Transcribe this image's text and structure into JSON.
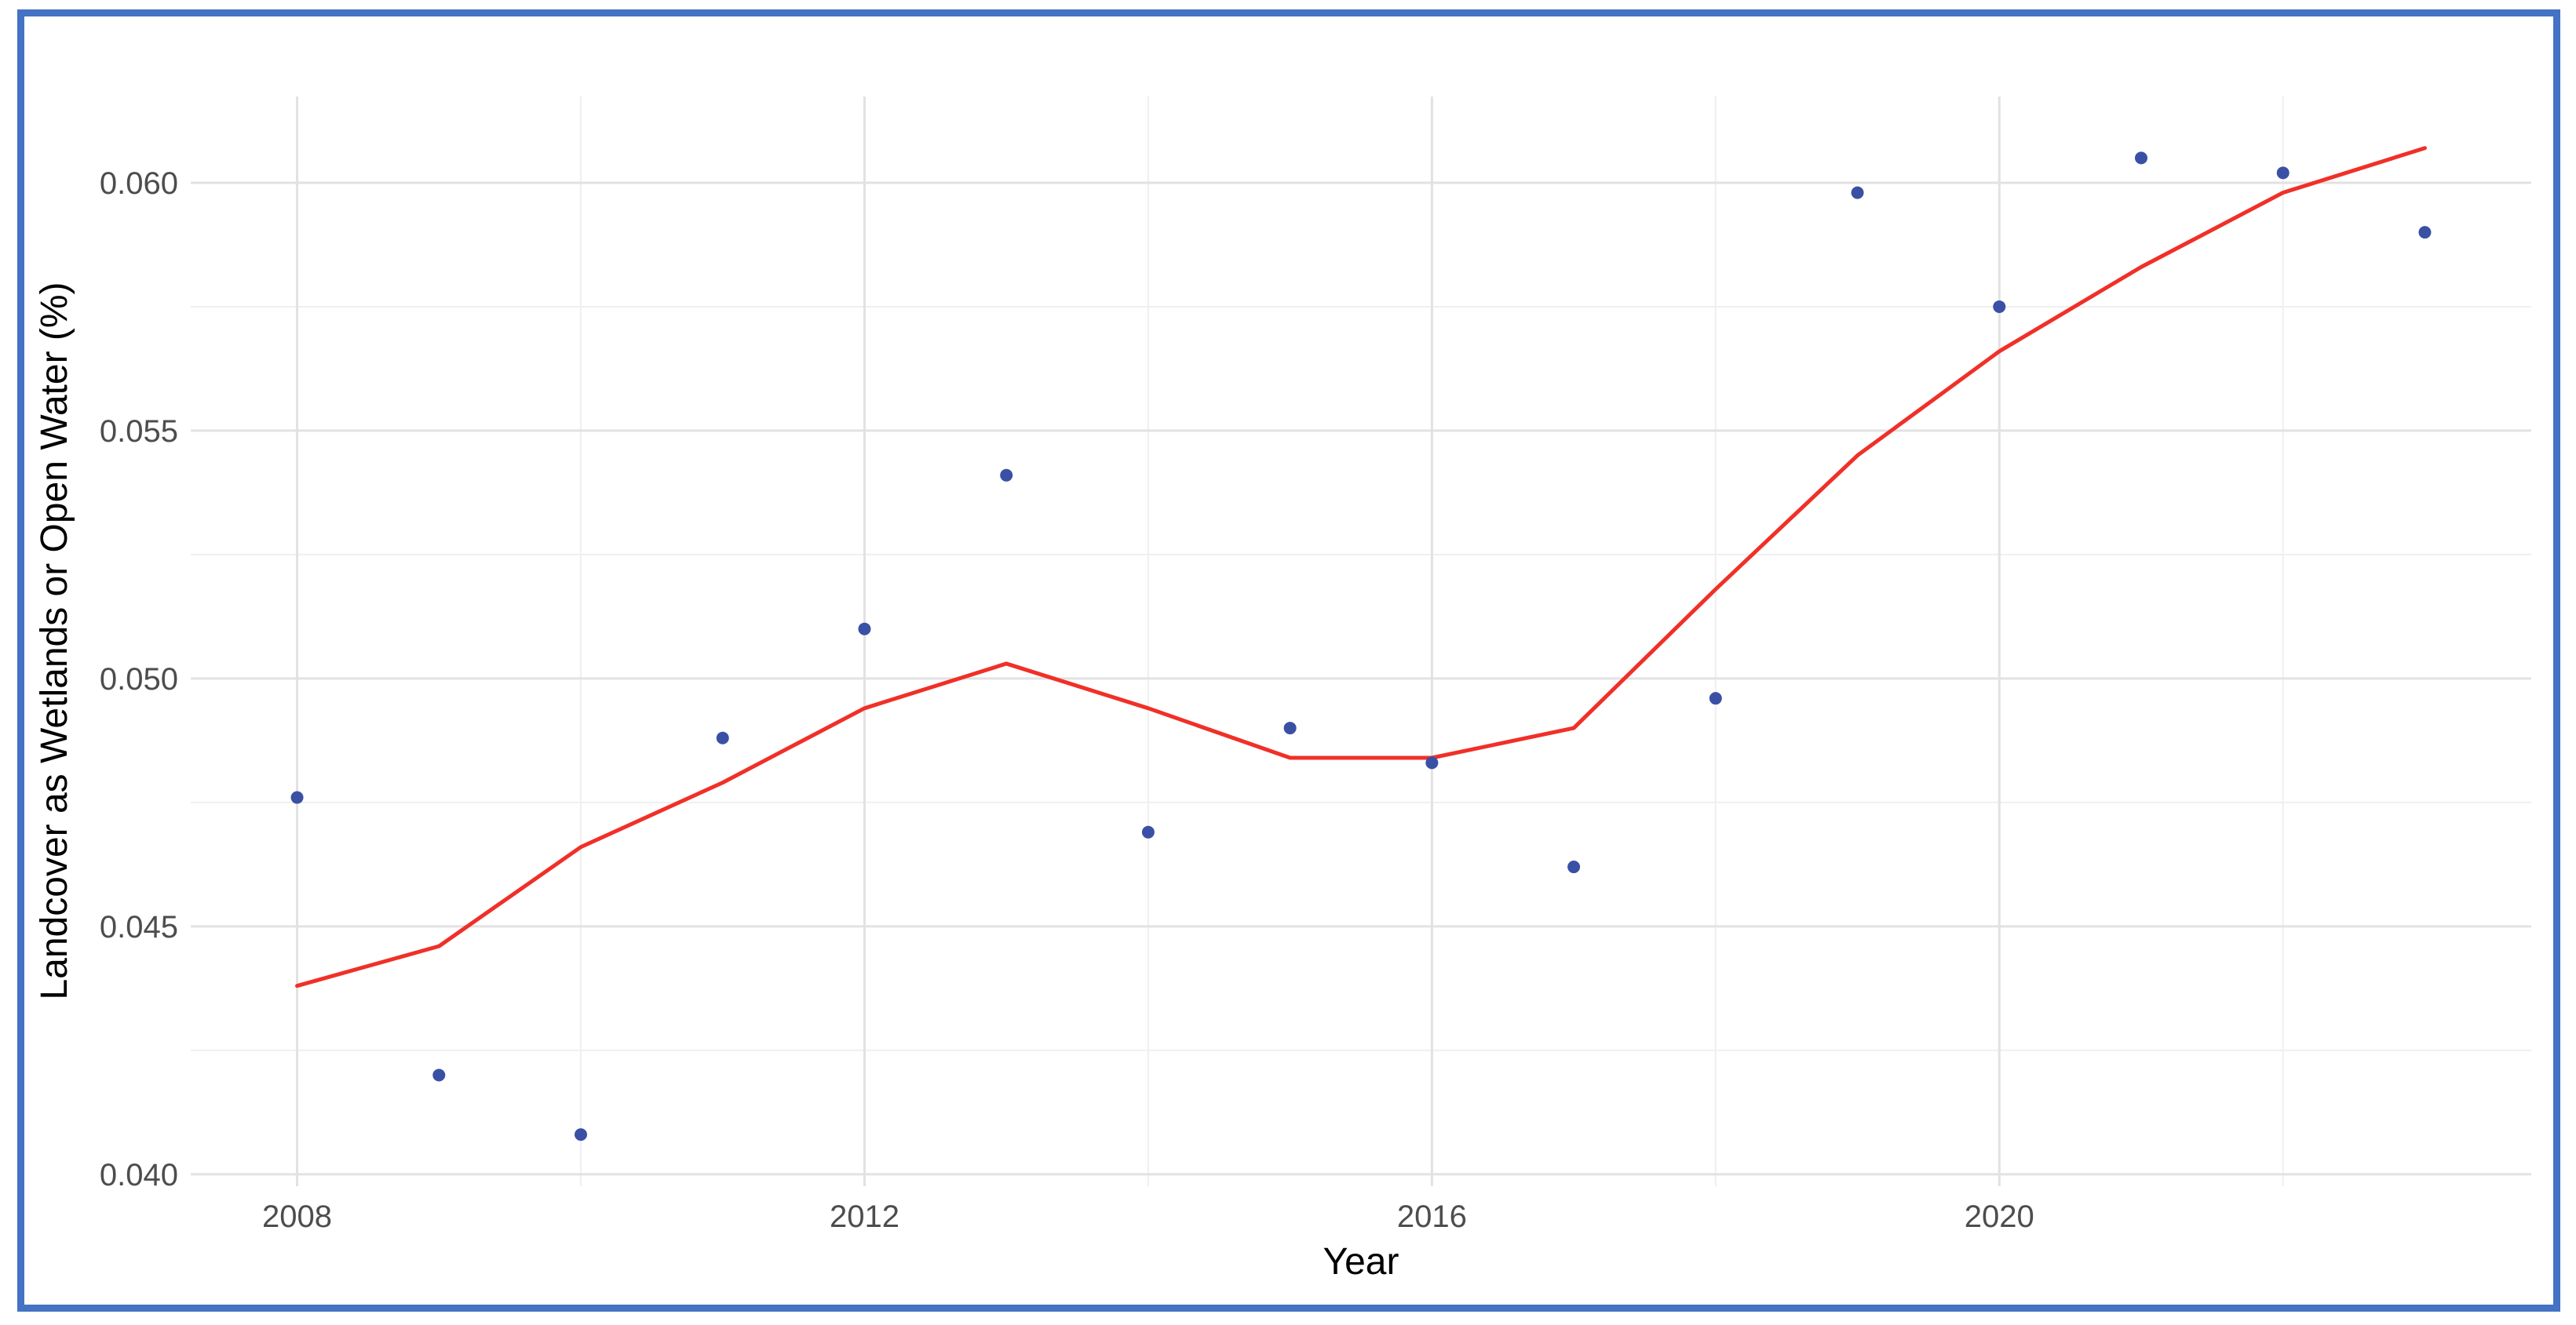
{
  "figure": {
    "border_color": "#4472C4",
    "background_color": "#ffffff",
    "panel_background": "#ffffff"
  },
  "chart_data": {
    "type": "scatter",
    "title": "",
    "xlabel": "Year",
    "ylabel": "Landcover as Wetlands or Open Water (%)",
    "xlim": [
      2007.25,
      2023.75
    ],
    "ylim": [
      0.03976,
      0.06174
    ],
    "grid": "major+minor",
    "legend": "none",
    "x_ticks": [
      {
        "label": "2008",
        "value": 2008
      },
      {
        "label": "2012",
        "value": 2012
      },
      {
        "label": "2016",
        "value": 2016
      },
      {
        "label": "2020",
        "value": 2020
      }
    ],
    "x_minor_ticks": [
      2010,
      2014,
      2018,
      2022
    ],
    "y_ticks": [
      {
        "label": "0.040",
        "value": 0.04
      },
      {
        "label": "0.045",
        "value": 0.045
      },
      {
        "label": "0.050",
        "value": 0.05
      },
      {
        "label": "0.055",
        "value": 0.055
      },
      {
        "label": "0.060",
        "value": 0.06
      }
    ],
    "y_minor_ticks": [
      0.0425,
      0.0475,
      0.0525,
      0.0575
    ],
    "series": [
      {
        "name": "annual-observations",
        "type": "scatter",
        "color": "#3A50A5",
        "marker_radius": 8,
        "x": [
          2008,
          2009,
          2010,
          2011,
          2012,
          2013,
          2014,
          2015,
          2016,
          2017,
          2018,
          2019,
          2020,
          2021,
          2022,
          2023
        ],
        "y": [
          0.0476,
          0.042,
          0.0408,
          0.0488,
          0.051,
          0.0541,
          0.0469,
          0.049,
          0.0483,
          0.0462,
          0.0496,
          0.0598,
          0.0575,
          0.0605,
          0.0602,
          0.059
        ]
      },
      {
        "name": "loess-trend",
        "type": "line",
        "color": "#F03028",
        "line_width": 5,
        "x": [
          2008,
          2009,
          2010,
          2011,
          2012,
          2013,
          2014,
          2015,
          2016,
          2017,
          2018,
          2019,
          2020,
          2021,
          2022,
          2023
        ],
        "y": [
          0.0438,
          0.0446,
          0.0466,
          0.0479,
          0.0494,
          0.0503,
          0.0494,
          0.0484,
          0.0484,
          0.049,
          0.0518,
          0.0545,
          0.0566,
          0.0583,
          0.0598,
          0.0607
        ]
      }
    ],
    "style": {
      "grid_major_color": "#E2E2E2",
      "grid_minor_color": "#EFEFEF",
      "tick_label_color": "#4d4d4d",
      "axis_title_color": "#000000"
    }
  }
}
